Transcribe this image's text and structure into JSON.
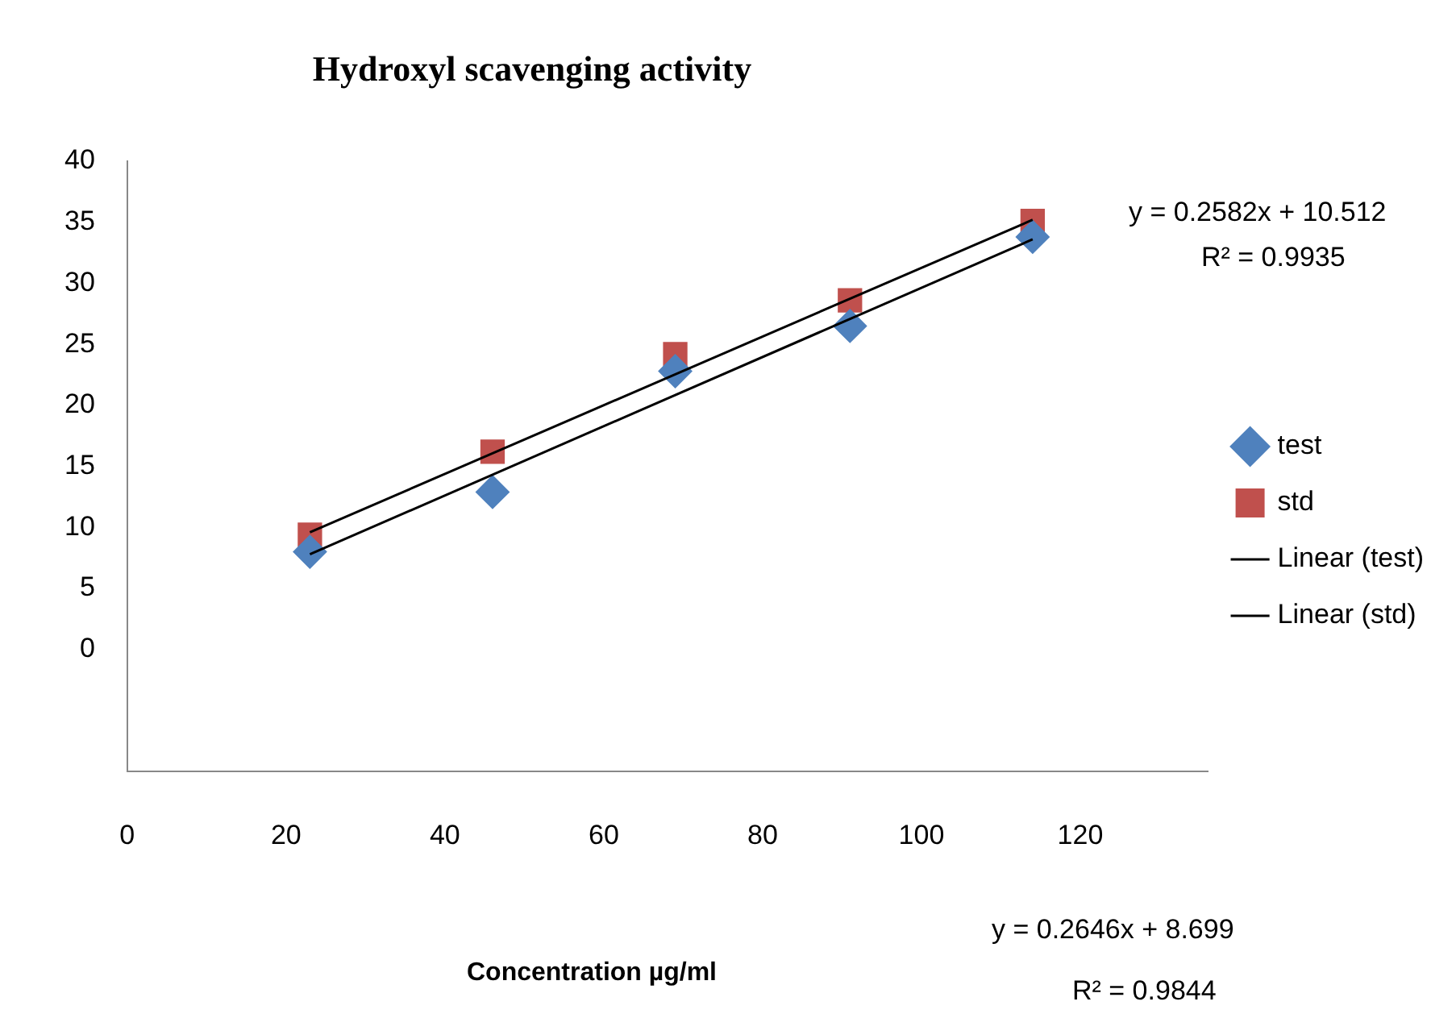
{
  "chart_data": {
    "type": "scatter",
    "title": "Hydroxyl scavenging activity",
    "xlabel": "Concentration µg/ml",
    "series": [
      {
        "name": "test",
        "color": "#4f81bd",
        "marker": "diamond",
        "x": [
          23,
          46,
          69,
          91,
          114
        ],
        "values": [
          8.0,
          12.9,
          22.8,
          26.5,
          33.8
        ]
      },
      {
        "name": "std",
        "color": "#c0504d",
        "marker": "square",
        "x": [
          23,
          46,
          69,
          91,
          114
        ],
        "values": [
          9.4,
          16.2,
          24.2,
          28.6,
          35.1
        ]
      },
      {
        "name": "Linear (test)",
        "type": "line",
        "color": "#000000",
        "marker": "none",
        "x": [
          23,
          114
        ],
        "values": [
          7.8,
          33.6
        ]
      },
      {
        "name": "Linear (std)",
        "type": "line",
        "color": "#000000",
        "marker": "none",
        "x": [
          23,
          114
        ],
        "values": [
          9.6,
          35.2
        ]
      }
    ],
    "xlim": [
      0,
      136
    ],
    "xticks": [
      0,
      20,
      40,
      60,
      80,
      100,
      120
    ],
    "ylim": [
      -10,
      40
    ],
    "yticks": [
      0,
      5,
      10,
      15,
      20,
      25,
      30,
      35,
      40
    ],
    "grid": false,
    "legend": "right",
    "annotations": [
      "y = 0.2582x + 10.512",
      "R² = 0.9935",
      "y = 0.2646x + 8.699",
      "R² = 0.9844"
    ]
  }
}
